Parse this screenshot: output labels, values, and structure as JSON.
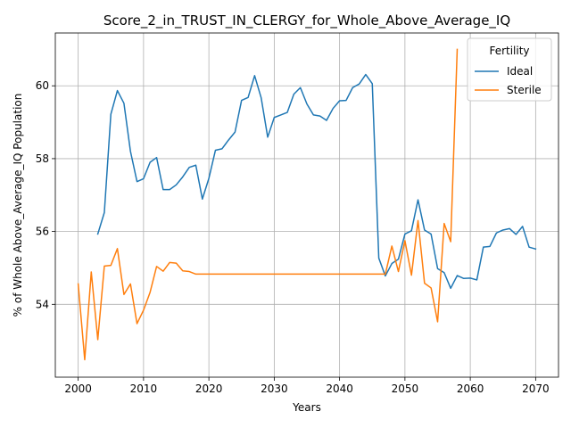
{
  "chart_data": {
    "type": "line",
    "title": "Score_2_in_TRUST_IN_CLERGY_for_Whole_Above_Average_IQ",
    "xlabel": "Years",
    "ylabel": "% of Whole Above_Average_IQ Population",
    "xlim": [
      1996.5,
      2073.5
    ],
    "ylim": [
      52.0,
      61.45
    ],
    "xticks": [
      2000,
      2010,
      2020,
      2030,
      2040,
      2050,
      2060,
      2070
    ],
    "yticks": [
      54,
      56,
      58,
      60
    ],
    "grid": true,
    "legend": {
      "title": "Fertility",
      "position": "top-right"
    },
    "series": [
      {
        "name": "Ideal",
        "color": "#1f77b4",
        "x": [
          2003,
          2004,
          2005,
          2006,
          2007,
          2008,
          2009,
          2010,
          2011,
          2012,
          2013,
          2014,
          2015,
          2016,
          2017,
          2018,
          2019,
          2020,
          2021,
          2022,
          2023,
          2024,
          2025,
          2026,
          2027,
          2028,
          2029,
          2030,
          2031,
          2032,
          2033,
          2034,
          2035,
          2036,
          2037,
          2038,
          2039,
          2040,
          2041,
          2042,
          2043,
          2044,
          2045,
          2046,
          2047,
          2048,
          2049,
          2050,
          2051,
          2052,
          2053,
          2054,
          2055,
          2056,
          2057,
          2058,
          2059,
          2060,
          2061,
          2062,
          2063,
          2064,
          2065,
          2066,
          2067,
          2068,
          2069,
          2070
        ],
        "y": [
          55.93,
          56.52,
          59.22,
          59.87,
          59.52,
          58.2,
          57.37,
          57.45,
          57.9,
          58.03,
          57.15,
          57.15,
          57.28,
          57.5,
          57.76,
          57.82,
          56.89,
          57.46,
          58.23,
          58.27,
          58.51,
          58.73,
          59.6,
          59.68,
          60.28,
          59.67,
          58.59,
          59.13,
          59.2,
          59.27,
          59.77,
          59.95,
          59.5,
          59.2,
          59.17,
          59.05,
          59.38,
          59.59,
          59.6,
          59.95,
          60.05,
          60.31,
          60.06,
          55.27,
          54.78,
          55.12,
          55.24,
          55.93,
          56.02,
          56.87,
          56.04,
          55.93,
          54.98,
          54.87,
          54.44,
          54.79,
          54.71,
          54.72,
          54.67,
          55.57,
          55.59,
          55.96,
          56.04,
          56.08,
          55.92,
          56.14,
          55.57,
          55.52
        ]
      },
      {
        "name": "Sterile",
        "color": "#ff7f0e",
        "x": [
          2000,
          2001,
          2002,
          2003,
          2004,
          2005,
          2006,
          2007,
          2008,
          2009,
          2010,
          2011,
          2012,
          2013,
          2014,
          2015,
          2016,
          2017,
          2018,
          2019,
          2020,
          2021,
          2022,
          2023,
          2024,
          2025,
          2026,
          2027,
          2028,
          2029,
          2030,
          2031,
          2032,
          2033,
          2034,
          2035,
          2036,
          2037,
          2038,
          2039,
          2040,
          2041,
          2042,
          2043,
          2044,
          2045,
          2046,
          2047,
          2048,
          2049,
          2050,
          2051,
          2052,
          2053,
          2054,
          2055,
          2056,
          2057,
          2058
        ],
        "y": [
          54.56,
          52.48,
          54.89,
          53.03,
          55.05,
          55.07,
          55.53,
          54.27,
          54.56,
          53.47,
          53.84,
          54.33,
          55.04,
          54.91,
          55.15,
          55.13,
          54.92,
          54.9,
          54.83,
          54.83,
          54.83,
          54.83,
          54.83,
          54.83,
          54.83,
          54.83,
          54.83,
          54.83,
          54.83,
          54.83,
          54.83,
          54.83,
          54.83,
          54.83,
          54.83,
          54.83,
          54.83,
          54.83,
          54.83,
          54.83,
          54.83,
          54.83,
          54.83,
          54.83,
          54.83,
          54.83,
          54.83,
          54.83,
          55.6,
          54.9,
          55.75,
          54.8,
          56.3,
          54.58,
          54.45,
          53.52,
          56.22,
          55.72,
          61.0
        ]
      }
    ]
  }
}
